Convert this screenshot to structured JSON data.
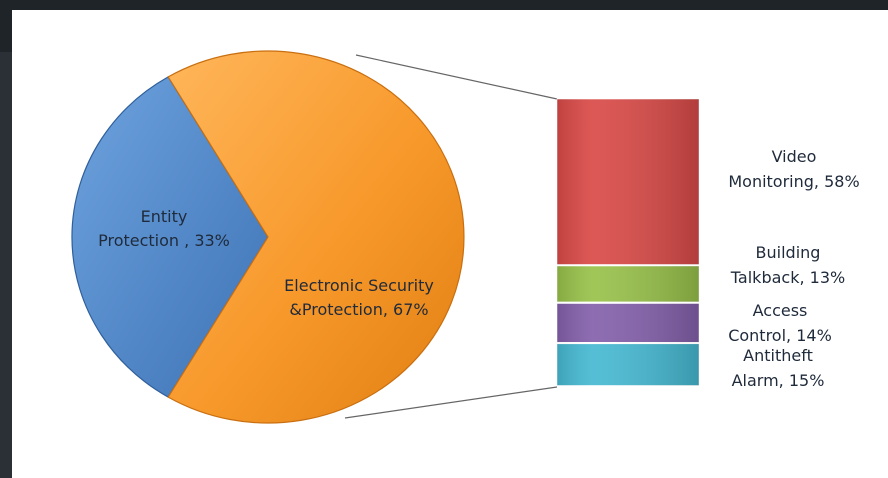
{
  "chart_data": [
    {
      "type": "pie",
      "slices": [
        {
          "label": "Entity Protection",
          "value": 33,
          "text_lines": [
            "Entity",
            "Protection , 33%"
          ],
          "color": "#4f86c6"
        },
        {
          "label": "Electronic Security &Protection",
          "value": 67,
          "text_lines": [
            "Electronic Security",
            "&Protection, 67%"
          ],
          "color": "#f59a2e"
        }
      ]
    },
    {
      "type": "bar",
      "stacked": true,
      "orientation": "vertical",
      "segments": [
        {
          "label": "Video Monitoring",
          "value": 58,
          "text_lines": [
            "Video",
            "Monitoring, 58%"
          ],
          "color": "#d94a47"
        },
        {
          "label": "Building Talkback",
          "value": 13,
          "text_lines": [
            "Building",
            "Talkback, 13%"
          ],
          "color": "#98c14a"
        },
        {
          "label": "Access Control",
          "value": 14,
          "text_lines": [
            "Access",
            "Control, 14%"
          ],
          "color": "#8460ab"
        },
        {
          "label": "Antitheft Alarm",
          "value": 15,
          "text_lines": [
            "Antitheft",
            "Alarm, 15%"
          ],
          "color": "#46b9d2"
        }
      ]
    }
  ]
}
